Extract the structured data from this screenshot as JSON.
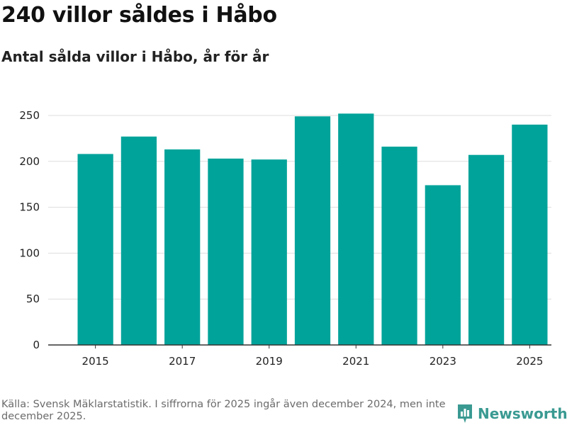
{
  "title": "240 villor såldes i Håbo",
  "subtitle": "Antal sålda villor i Håbo, år för år",
  "source": "Källa: Svensk Mäklarstatistik. I siffrorna för 2025 ingår även december 2024, men inte december 2025.",
  "brand": {
    "name": "Newsworthy",
    "color": "#3a9a92"
  },
  "bar_color": "#00a39a",
  "chart_data": {
    "type": "bar",
    "title": "240 villor såldes i Håbo",
    "subtitle": "Antal sålda villor i Håbo, år för år",
    "xlabel": "",
    "ylabel": "",
    "categories": [
      "2015",
      "2016",
      "2017",
      "2018",
      "2019",
      "2020",
      "2021",
      "2022",
      "2023",
      "2024",
      "2025"
    ],
    "values": [
      208,
      227,
      213,
      203,
      202,
      249,
      252,
      216,
      174,
      207,
      240
    ],
    "ylim": [
      0,
      260
    ],
    "yticks": [
      0,
      50,
      100,
      150,
      200,
      250
    ],
    "xtick_labels": [
      "2015",
      "2017",
      "2019",
      "2021",
      "2023",
      "2025"
    ],
    "grid": true,
    "legend": "none"
  }
}
